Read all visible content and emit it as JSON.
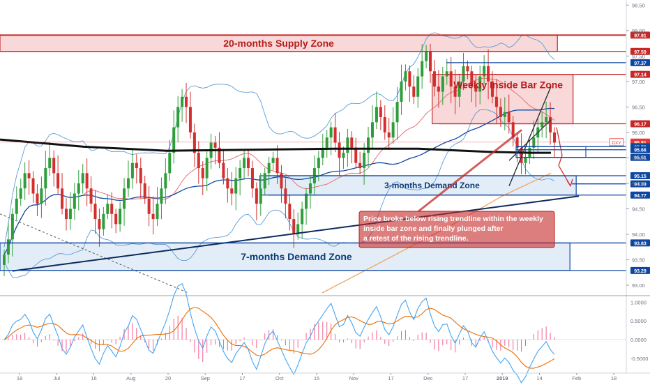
{
  "chart_data": {
    "type": "candlestick",
    "symbol": "DXY",
    "price_scale": [
      {
        "value": 98.5,
        "label": "98.50"
      },
      {
        "value": 98.0,
        "label": "98.00"
      },
      {
        "value": 97.5,
        "label": "97.50"
      },
      {
        "value": 97.0,
        "label": "97.00"
      },
      {
        "value": 96.5,
        "label": "96.50"
      },
      {
        "value": 96.0,
        "label": "96.00"
      },
      {
        "value": 95.5,
        "label": "95.50"
      },
      {
        "value": 95.0,
        "label": "95.00"
      },
      {
        "value": 94.5,
        "label": "94.50"
      },
      {
        "value": 94.0,
        "label": "94.00"
      },
      {
        "value": 93.5,
        "label": "93.50"
      },
      {
        "value": 93.0,
        "label": "93.00"
      }
    ],
    "price_range": [
      92.85,
      98.6
    ],
    "level_labels": [
      {
        "value": 97.91,
        "label": "97.91",
        "color": "#c62828"
      },
      {
        "value": 97.59,
        "label": "97.59",
        "color": "#c62828"
      },
      {
        "value": 97.37,
        "label": "97.37",
        "color": "#0d47a1"
      },
      {
        "value": 97.14,
        "label": "97.14",
        "color": "#c62828"
      },
      {
        "value": 96.17,
        "label": "96.17",
        "color": "#c62828"
      },
      {
        "value": 95.81,
        "label": "95.81",
        "color": "#e53935",
        "tag": "DXY"
      },
      {
        "value": 95.72,
        "label": "95.72",
        "color": "#0d47a1"
      },
      {
        "value": 95.66,
        "label": "95.66",
        "color": "#0d47a1"
      },
      {
        "value": 95.51,
        "label": "95.51",
        "color": "#0d47a1"
      },
      {
        "value": 95.15,
        "label": "95.15",
        "color": "#0d47a1"
      },
      {
        "value": 94.99,
        "label": "94.99",
        "color": "#0d47a1"
      },
      {
        "value": 94.77,
        "label": "94.77",
        "color": "#0d47a1"
      },
      {
        "value": 93.83,
        "label": "93.83",
        "color": "#0d47a1"
      },
      {
        "value": 93.29,
        "label": "93.29",
        "color": "#0d47a1"
      }
    ],
    "zones": [
      {
        "label": "20-months Supply Zone",
        "top": 97.91,
        "bottom": 97.59,
        "x_end": 0.89,
        "kind": "supply"
      },
      {
        "label": "Weekly Inside Bar Zone",
        "top": 97.14,
        "bottom": 96.17,
        "x_start": 0.69,
        "x_end": 0.915,
        "kind": "supply"
      },
      {
        "label": "3-months Demand Zone",
        "top": 95.15,
        "bottom": 94.77,
        "x_start": 0.415,
        "x_end": 0.92,
        "kind": "demand"
      },
      {
        "label": "7-months Demand Zone",
        "top": 93.83,
        "bottom": 93.29,
        "x_start": 0.0,
        "x_end": 0.91,
        "kind": "demand"
      }
    ],
    "annotation": "Price broke below rising trendline within the weekly inside bar zone and finally plunged after a retest of the rising trendline.",
    "time_axis": [
      "18",
      "Jul",
      "16",
      "Aug",
      "20",
      "Sep",
      "17",
      "Oct",
      "15",
      "Nov",
      "17",
      "Dec",
      "17",
      "2019",
      "14",
      "Feb",
      "18"
    ],
    "oscillator_scale": [
      {
        "value": 1.0,
        "label": "1.0000"
      },
      {
        "value": 0.5,
        "label": "0.5000"
      },
      {
        "value": 0.0,
        "label": "0.0000"
      },
      {
        "value": -0.5,
        "label": "-0.5000"
      }
    ],
    "oscillator_range": [
      -0.8,
      1.1
    ],
    "close": [
      93.6,
      93.9,
      94.4,
      94.7,
      94.9,
      95.2,
      95.1,
      94.8,
      94.6,
      94.9,
      95.3,
      95.5,
      95.2,
      94.9,
      94.5,
      94.3,
      94.5,
      94.8,
      95.0,
      95.2,
      94.9,
      94.6,
      94.3,
      94.1,
      94.4,
      94.6,
      94.4,
      94.2,
      94.5,
      94.9,
      95.1,
      95.4,
      95.3,
      95.0,
      94.7,
      94.4,
      94.3,
      94.6,
      94.9,
      95.2,
      95.6,
      96.1,
      96.5,
      96.7,
      96.5,
      96.0,
      95.6,
      95.3,
      95.1,
      95.5,
      95.8,
      95.7,
      95.4,
      95.1,
      94.9,
      94.8,
      95.1,
      95.3,
      95.5,
      95.3,
      94.9,
      94.6,
      94.9,
      95.2,
      95.4,
      95.5,
      95.2,
      94.9,
      94.6,
      94.3,
      94.0,
      94.2,
      94.5,
      94.8,
      95.0,
      95.3,
      95.5,
      95.7,
      95.9,
      96.1,
      95.8,
      95.5,
      95.6,
      95.9,
      95.7,
      95.4,
      95.3,
      95.6,
      95.9,
      96.2,
      96.5,
      96.3,
      96.0,
      95.9,
      96.2,
      96.6,
      97.0,
      97.2,
      96.9,
      96.7,
      97.1,
      97.4,
      97.6,
      97.2,
      96.9,
      96.8,
      97.1,
      97.2,
      96.9,
      96.7,
      97.0,
      97.3,
      97.2,
      96.9,
      96.8,
      97.1,
      97.3,
      97.0,
      96.7,
      96.5,
      96.3,
      96.4,
      96.2,
      95.9,
      95.7,
      95.4,
      95.5,
      95.7,
      95.9,
      96.1,
      96.2,
      96.3,
      96.0,
      95.8
    ]
  }
}
